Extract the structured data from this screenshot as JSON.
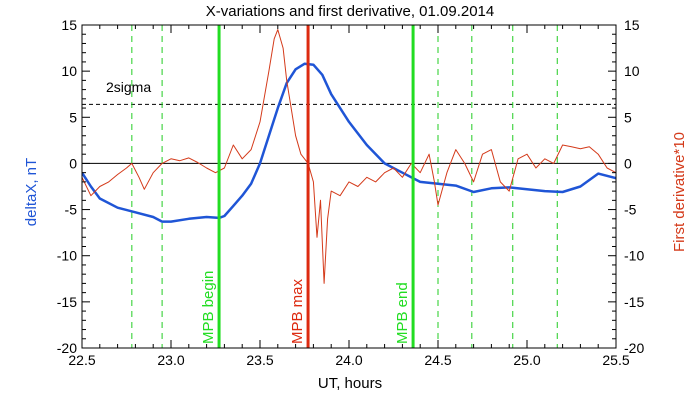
{
  "chart_data": {
    "type": "line",
    "title": "X-variations and first derivative, 01.09.2014",
    "xlabel": "UT, hours",
    "ylabel_left": "deltaX, nT",
    "ylabel_right": "First derivative*10",
    "xlim": [
      22.5,
      25.5
    ],
    "ylim": [
      -20,
      15
    ],
    "xticks": [
      "22.5",
      "23.0",
      "23.5",
      "24.0",
      "24.5",
      "25.0",
      "25.5"
    ],
    "yticks": [
      "15",
      "10",
      "5",
      "0",
      "-5",
      "-10",
      "-15",
      "-20"
    ],
    "sigma_label": "2sigma",
    "sigma_level": 6.4,
    "zero_level": 0,
    "colors": {
      "deltaX": "#1f55d6",
      "derivative": "#d43a1a",
      "mpb_marker": "#22dd22",
      "mpb_max": "#dd2a10",
      "dashed_vertical": "#22cc22"
    },
    "dashed_verticals": [
      22.78,
      22.95,
      24.5,
      24.69,
      24.92,
      25.17
    ],
    "markers": [
      {
        "label": "MPB begin",
        "x": 23.27,
        "kind": "begin"
      },
      {
        "label": "MPB max",
        "x": 23.77,
        "kind": "max"
      },
      {
        "label": "MPB end",
        "x": 24.36,
        "kind": "end"
      }
    ],
    "series": [
      {
        "name": "deltaX",
        "x": [
          22.5,
          22.55,
          22.6,
          22.7,
          22.8,
          22.9,
          22.95,
          23.0,
          23.1,
          23.2,
          23.27,
          23.3,
          23.35,
          23.4,
          23.45,
          23.5,
          23.55,
          23.6,
          23.65,
          23.7,
          23.75,
          23.8,
          23.85,
          23.9,
          24.0,
          24.1,
          24.2,
          24.3,
          24.4,
          24.5,
          24.6,
          24.7,
          24.8,
          24.9,
          25.0,
          25.1,
          25.2,
          25.3,
          25.4,
          25.5
        ],
        "y": [
          -1.0,
          -2.5,
          -3.8,
          -4.8,
          -5.3,
          -5.8,
          -6.3,
          -6.3,
          -6.0,
          -5.8,
          -5.9,
          -5.7,
          -4.6,
          -3.5,
          -2.2,
          0.0,
          3.0,
          6.0,
          8.7,
          10.2,
          10.8,
          10.7,
          9.6,
          7.5,
          4.5,
          2.0,
          0.0,
          -1.0,
          -2.0,
          -2.2,
          -2.4,
          -3.1,
          -2.7,
          -2.6,
          -2.8,
          -3.0,
          -3.1,
          -2.5,
          -1.1,
          -1.6
        ]
      },
      {
        "name": "First derivative*10",
        "x": [
          22.5,
          22.55,
          22.6,
          22.65,
          22.7,
          22.75,
          22.78,
          22.82,
          22.85,
          22.9,
          22.95,
          23.0,
          23.05,
          23.1,
          23.15,
          23.2,
          23.25,
          23.3,
          23.35,
          23.4,
          23.45,
          23.5,
          23.55,
          23.58,
          23.6,
          23.63,
          23.65,
          23.7,
          23.73,
          23.77,
          23.8,
          23.82,
          23.84,
          23.86,
          23.88,
          23.9,
          23.95,
          24.0,
          24.05,
          24.1,
          24.15,
          24.2,
          24.25,
          24.3,
          24.35,
          24.4,
          24.45,
          24.48,
          24.5,
          24.55,
          24.6,
          24.65,
          24.7,
          24.75,
          24.8,
          24.85,
          24.9,
          24.95,
          25.0,
          25.05,
          25.1,
          25.15,
          25.2,
          25.25,
          25.3,
          25.35,
          25.4,
          25.45,
          25.5
        ],
        "y": [
          -1.5,
          -3.5,
          -2.5,
          -2.0,
          -1.2,
          -0.5,
          0.0,
          -1.5,
          -2.8,
          -1.0,
          0.0,
          0.5,
          0.3,
          0.6,
          0.1,
          -0.5,
          -1.0,
          -0.5,
          2.0,
          0.5,
          1.5,
          4.5,
          10.0,
          13.5,
          14.5,
          12.5,
          9.0,
          3.0,
          1.0,
          0.0,
          -2.0,
          -8.0,
          -4.0,
          -13.0,
          -6.0,
          -3.0,
          -3.5,
          -2.0,
          -2.5,
          -1.5,
          -2.0,
          -1.0,
          -0.5,
          -1.5,
          0.0,
          -1.0,
          1.0,
          -2.0,
          -4.5,
          -1.0,
          1.5,
          0.0,
          -2.0,
          1.0,
          1.5,
          -2.0,
          -3.0,
          0.5,
          1.0,
          -0.5,
          0.5,
          0.0,
          2.0,
          1.8,
          1.6,
          1.8,
          1.0,
          -0.5,
          -1.0
        ]
      }
    ]
  }
}
